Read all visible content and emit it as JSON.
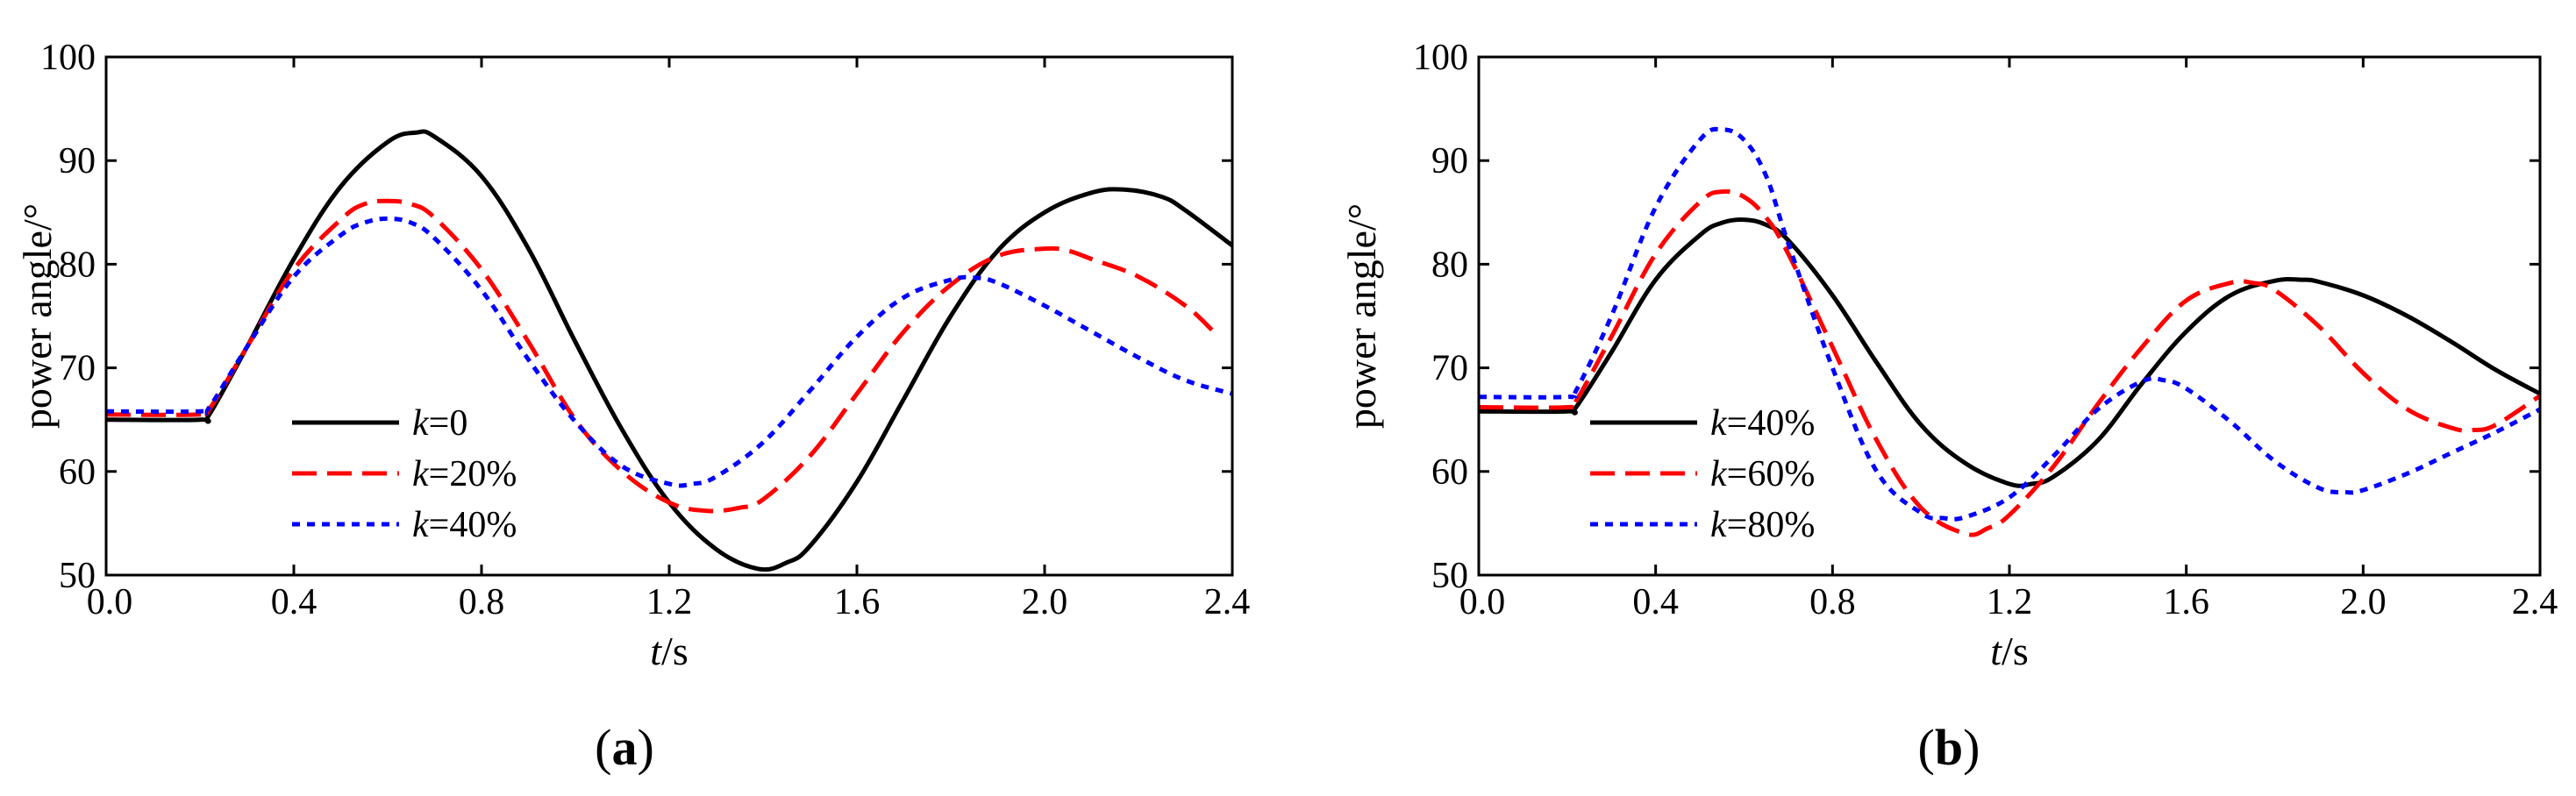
{
  "chart_data": [
    {
      "type": "line",
      "panel_label": "a",
      "xlabel_var": "t",
      "xlabel_unit": "/s",
      "ylabel": "power angle/°",
      "xlim": [
        0.0,
        2.4
      ],
      "ylim": [
        50,
        100
      ],
      "xticks": [
        "0.0",
        "0.4",
        "0.8",
        "1.2",
        "1.6",
        "2.0",
        "2.4"
      ],
      "yticks": [
        "50",
        "60",
        "70",
        "80",
        "90",
        "100"
      ],
      "legend_position": "bottom-left",
      "series": [
        {
          "name_var": "k",
          "name_value": "=0",
          "color": "#000000",
          "dash": "solid",
          "x": [
            0.0,
            0.2,
            0.22,
            0.3,
            0.4,
            0.5,
            0.6,
            0.66,
            0.7,
            0.8,
            0.9,
            1.0,
            1.1,
            1.2,
            1.3,
            1.39,
            1.45,
            1.5,
            1.6,
            1.7,
            1.8,
            1.9,
            2.0,
            2.1,
            2.17,
            2.25,
            2.3,
            2.4
          ],
          "y": [
            65.0,
            65.0,
            65.5,
            72.0,
            80.5,
            87.5,
            91.8,
            92.7,
            92.3,
            88.5,
            81.5,
            72.5,
            64.0,
            57.0,
            52.5,
            50.6,
            51.2,
            52.8,
            59.0,
            67.0,
            75.0,
            81.3,
            85.0,
            86.9,
            87.2,
            86.5,
            85.2,
            81.8
          ]
        },
        {
          "name_var": "k",
          "name_value": "=20%",
          "color": "#ff0000",
          "dash": "dashed",
          "x": [
            0.0,
            0.2,
            0.22,
            0.3,
            0.4,
            0.5,
            0.55,
            0.6,
            0.65,
            0.7,
            0.8,
            0.9,
            1.0,
            1.1,
            1.2,
            1.28,
            1.35,
            1.4,
            1.5,
            1.6,
            1.7,
            1.8,
            1.9,
            2.0,
            2.05,
            2.1,
            2.2,
            2.3,
            2.36
          ],
          "y": [
            65.5,
            65.5,
            66.0,
            72.0,
            79.5,
            84.3,
            85.8,
            86.1,
            85.8,
            84.5,
            79.5,
            72.5,
            65.0,
            60.0,
            57.0,
            56.2,
            56.5,
            57.3,
            61.5,
            67.5,
            73.5,
            78.0,
            80.8,
            81.5,
            81.3,
            80.5,
            78.8,
            76.0,
            73.5
          ]
        },
        {
          "name_var": "k",
          "name_value": "=40%",
          "color": "#0000ff",
          "dash": "dotted",
          "x": [
            0.0,
            0.2,
            0.22,
            0.3,
            0.4,
            0.5,
            0.55,
            0.6,
            0.65,
            0.7,
            0.8,
            0.9,
            1.0,
            1.1,
            1.2,
            1.25,
            1.3,
            1.4,
            1.5,
            1.6,
            1.7,
            1.8,
            1.85,
            1.9,
            2.0,
            2.1,
            2.2,
            2.3,
            2.4
          ],
          "y": [
            65.8,
            65.8,
            66.2,
            72.0,
            78.8,
            82.8,
            84.0,
            84.4,
            84.0,
            82.5,
            77.5,
            70.8,
            64.8,
            60.5,
            58.8,
            58.8,
            59.5,
            62.8,
            67.8,
            73.0,
            76.8,
            78.5,
            78.7,
            78.2,
            76.0,
            73.5,
            71.0,
            68.8,
            67.5
          ]
        }
      ]
    },
    {
      "type": "line",
      "panel_label": "b",
      "xlabel_var": "t",
      "xlabel_unit": "/s",
      "ylabel": "power angle/°",
      "xlim": [
        0.0,
        2.4
      ],
      "ylim": [
        50,
        100
      ],
      "xticks": [
        "0.0",
        "0.4",
        "0.8",
        "1.2",
        "1.6",
        "2.0",
        "2.4"
      ],
      "yticks": [
        "50",
        "60",
        "70",
        "80",
        "90",
        "100"
      ],
      "legend_position": "bottom-left",
      "series": [
        {
          "name_var": "k",
          "name_value": "=40%",
          "color": "#000000",
          "dash": "solid",
          "x": [
            0.0,
            0.2,
            0.22,
            0.3,
            0.4,
            0.5,
            0.55,
            0.6,
            0.65,
            0.7,
            0.8,
            0.9,
            1.0,
            1.1,
            1.2,
            1.25,
            1.3,
            1.4,
            1.5,
            1.6,
            1.7,
            1.8,
            1.86,
            1.9,
            2.0,
            2.1,
            2.2,
            2.3,
            2.4
          ],
          "y": [
            65.8,
            65.8,
            66.2,
            71.5,
            78.5,
            82.8,
            84.0,
            84.3,
            83.8,
            82.3,
            77.0,
            70.5,
            64.5,
            60.8,
            58.8,
            58.8,
            59.5,
            63.0,
            68.5,
            73.5,
            77.0,
            78.4,
            78.5,
            78.3,
            77.0,
            75.0,
            72.5,
            69.8,
            67.5
          ]
        },
        {
          "name_var": "k",
          "name_value": "=60%",
          "color": "#ff0000",
          "dash": "dashed",
          "x": [
            0.0,
            0.2,
            0.22,
            0.3,
            0.4,
            0.5,
            0.55,
            0.6,
            0.65,
            0.7,
            0.8,
            0.9,
            1.0,
            1.1,
            1.15,
            1.2,
            1.3,
            1.4,
            1.5,
            1.6,
            1.7,
            1.75,
            1.8,
            1.9,
            2.0,
            2.1,
            2.2,
            2.25,
            2.3,
            2.4
          ],
          "y": [
            66.2,
            66.2,
            66.8,
            73.0,
            81.0,
            86.0,
            87.0,
            86.5,
            84.5,
            81.0,
            72.0,
            63.0,
            56.5,
            54.0,
            54.5,
            55.8,
            60.5,
            66.5,
            72.0,
            76.5,
            78.2,
            78.2,
            77.5,
            74.0,
            69.5,
            66.0,
            64.2,
            64.0,
            64.5,
            67.3
          ]
        },
        {
          "name_var": "k",
          "name_value": "=80%",
          "color": "#0000ff",
          "dash": "dotted",
          "x": [
            0.0,
            0.2,
            0.22,
            0.3,
            0.4,
            0.5,
            0.55,
            0.6,
            0.65,
            0.7,
            0.8,
            0.9,
            1.0,
            1.05,
            1.1,
            1.2,
            1.3,
            1.4,
            1.5,
            1.55,
            1.6,
            1.7,
            1.8,
            1.9,
            1.96,
            2.0,
            2.1,
            2.2,
            2.3,
            2.4
          ],
          "y": [
            67.2,
            67.2,
            67.8,
            75.0,
            85.5,
            92.0,
            93.0,
            92.0,
            88.5,
            82.0,
            70.0,
            60.0,
            56.0,
            55.5,
            55.6,
            57.5,
            61.5,
            66.0,
            68.7,
            68.8,
            68.0,
            64.8,
            61.0,
            58.4,
            58.0,
            58.2,
            59.8,
            61.8,
            63.8,
            66.0
          ]
        }
      ]
    }
  ]
}
